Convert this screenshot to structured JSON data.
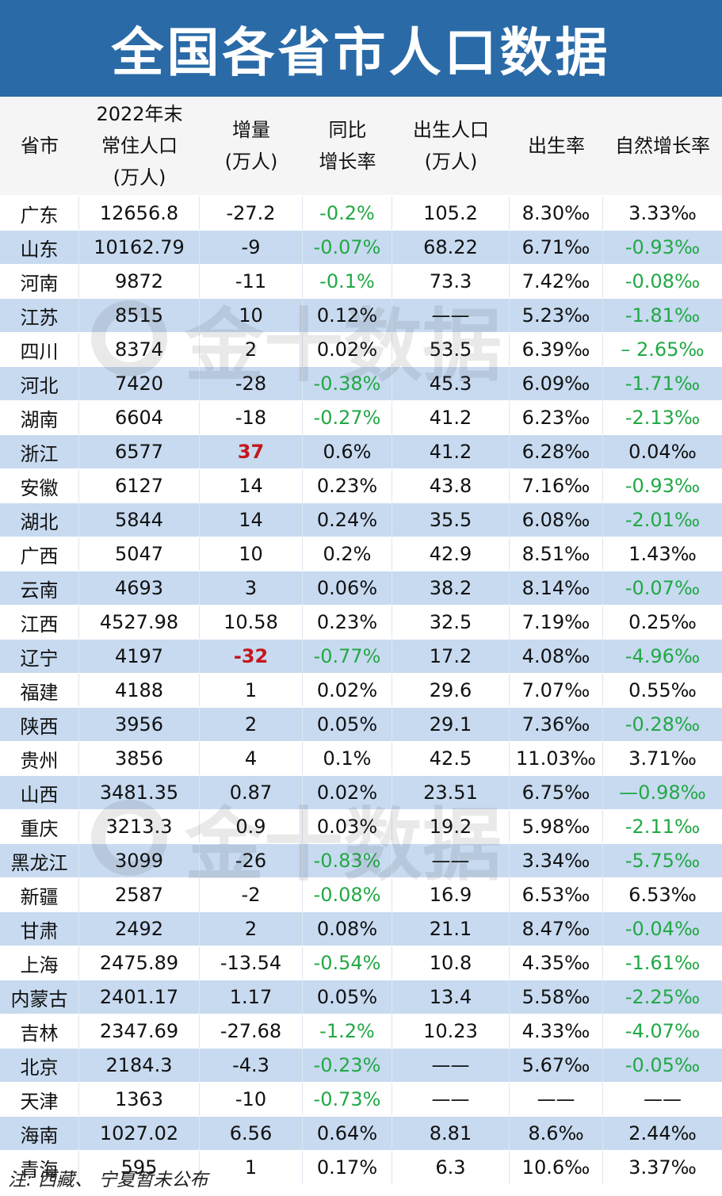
{
  "title": "全国各省市人口数据",
  "headers": [
    "省市",
    "2022年末\n常住人口\n(万人)",
    "增量\n(万人)",
    "同比\n增长率",
    "出生人口\n(万人)",
    "出生率",
    "自然增长率"
  ],
  "rows": [
    [
      "广东",
      "12656.8",
      "-27.2",
      "-0.2%",
      "105.2",
      "8.30‰",
      "3.33‰"
    ],
    [
      "山东",
      "10162.79",
      "-9",
      "-0.07%",
      "68.22",
      "6.71‰",
      "-0.93‰"
    ],
    [
      "河南",
      "9872",
      "-11",
      "-0.1%",
      "73.3",
      "7.42‰",
      "-0.08‰"
    ],
    [
      "江苏",
      "8515",
      "10",
      "0.12%",
      "——",
      "5.23‰",
      "-1.81‰"
    ],
    [
      "四川",
      "8374",
      "2",
      "0.02%",
      "53.5",
      "6.39‰",
      "– 2.65‰"
    ],
    [
      "河北",
      "7420",
      "-28",
      "-0.38%",
      "45.3",
      "6.09‰",
      "-1.71‰"
    ],
    [
      "湖南",
      "6604",
      "-18",
      "-0.27%",
      "41.2",
      "6.23‰",
      "-2.13‰"
    ],
    [
      "浙江",
      "6577",
      "37",
      "0.6%",
      "41.2",
      "6.28‰",
      "0.04‰"
    ],
    [
      "安徽",
      "6127",
      "14",
      "0.23%",
      "43.8",
      "7.16‰",
      "-0.93‰"
    ],
    [
      "湖北",
      "5844",
      "14",
      "0.24%",
      "35.5",
      "6.08‰",
      "-2.01‰"
    ],
    [
      "广西",
      "5047",
      "10",
      "0.2%",
      "42.9",
      "8.51‰",
      "1.43‰"
    ],
    [
      "云南",
      "4693",
      "3",
      "0.06%",
      "38.2",
      "8.14‰",
      "-0.07‰"
    ],
    [
      "江西",
      "4527.98",
      "10.58",
      "0.23%",
      "32.5",
      "7.19‰",
      "0.25‰"
    ],
    [
      "辽宁",
      "4197",
      "-32",
      "-0.77%",
      "17.2",
      "4.08‰",
      "-4.96‰"
    ],
    [
      "福建",
      "4188",
      "1",
      "0.02%",
      "29.6",
      "7.07‰",
      "0.55‰"
    ],
    [
      "陕西",
      "3956",
      "2",
      "0.05%",
      "29.1",
      "7.36‰",
      "-0.28‰"
    ],
    [
      "贵州",
      "3856",
      "4",
      "0.1%",
      "42.5",
      "11.03‰",
      "3.71‰"
    ],
    [
      "山西",
      "3481.35",
      "0.87",
      "0.02%",
      "23.51",
      "6.75‰",
      "—0.98‰"
    ],
    [
      "重庆",
      "3213.3",
      "0.9",
      "0.03%",
      "19.2",
      "5.98‰",
      "-2.11‰"
    ],
    [
      "黑龙江",
      "3099",
      "-26",
      "-0.83%",
      "——",
      "3.34‰",
      "-5.75‰"
    ],
    [
      "新疆",
      "2587",
      "-2",
      "-0.08%",
      "16.9",
      "6.53‰",
      "6.53‰"
    ],
    [
      "甘肃",
      "2492",
      "2",
      "0.08%",
      "21.1",
      "8.47‰",
      "-0.04‰"
    ],
    [
      "上海",
      "2475.89",
      "-13.54",
      "-0.54%",
      "10.8",
      "4.35‰",
      "-1.61‰"
    ],
    [
      "内蒙古",
      "2401.17",
      "1.17",
      "0.05%",
      "13.4",
      "5.58‰",
      "-2.25‰"
    ],
    [
      "吉林",
      "2347.69",
      "-27.68",
      "-1.2%",
      "10.23",
      "4.33‰",
      "-4.07‰"
    ],
    [
      "北京",
      "2184.3",
      "-4.3",
      "-0.23%",
      "——",
      "5.67‰",
      "-0.05‰"
    ],
    [
      "天津",
      "1363",
      "-10",
      "-0.73%",
      "——",
      "——",
      "——"
    ],
    [
      "海南",
      "1027.02",
      "6.56",
      "0.64%",
      "8.81",
      "8.6‰",
      "2.44‰"
    ],
    [
      "青海",
      "595",
      "1",
      "0.17%",
      "6.3",
      "10.6‰",
      "3.37‰"
    ]
  ],
  "shaded_rows": [
    1,
    3,
    5,
    7,
    9,
    11,
    13,
    15,
    17,
    19,
    21,
    23,
    25,
    27
  ],
  "highlight_red": [
    [
      7,
      2
    ],
    [
      13,
      2
    ]
  ],
  "watermark": "金十数据",
  "note": "注:  西藏、 宁夏暂未公布",
  "colors": {
    "title_bg": "#2a6aa7",
    "shaded_row": "#c7daf0",
    "negative": "#22a845",
    "highlight": "#c4161c"
  }
}
